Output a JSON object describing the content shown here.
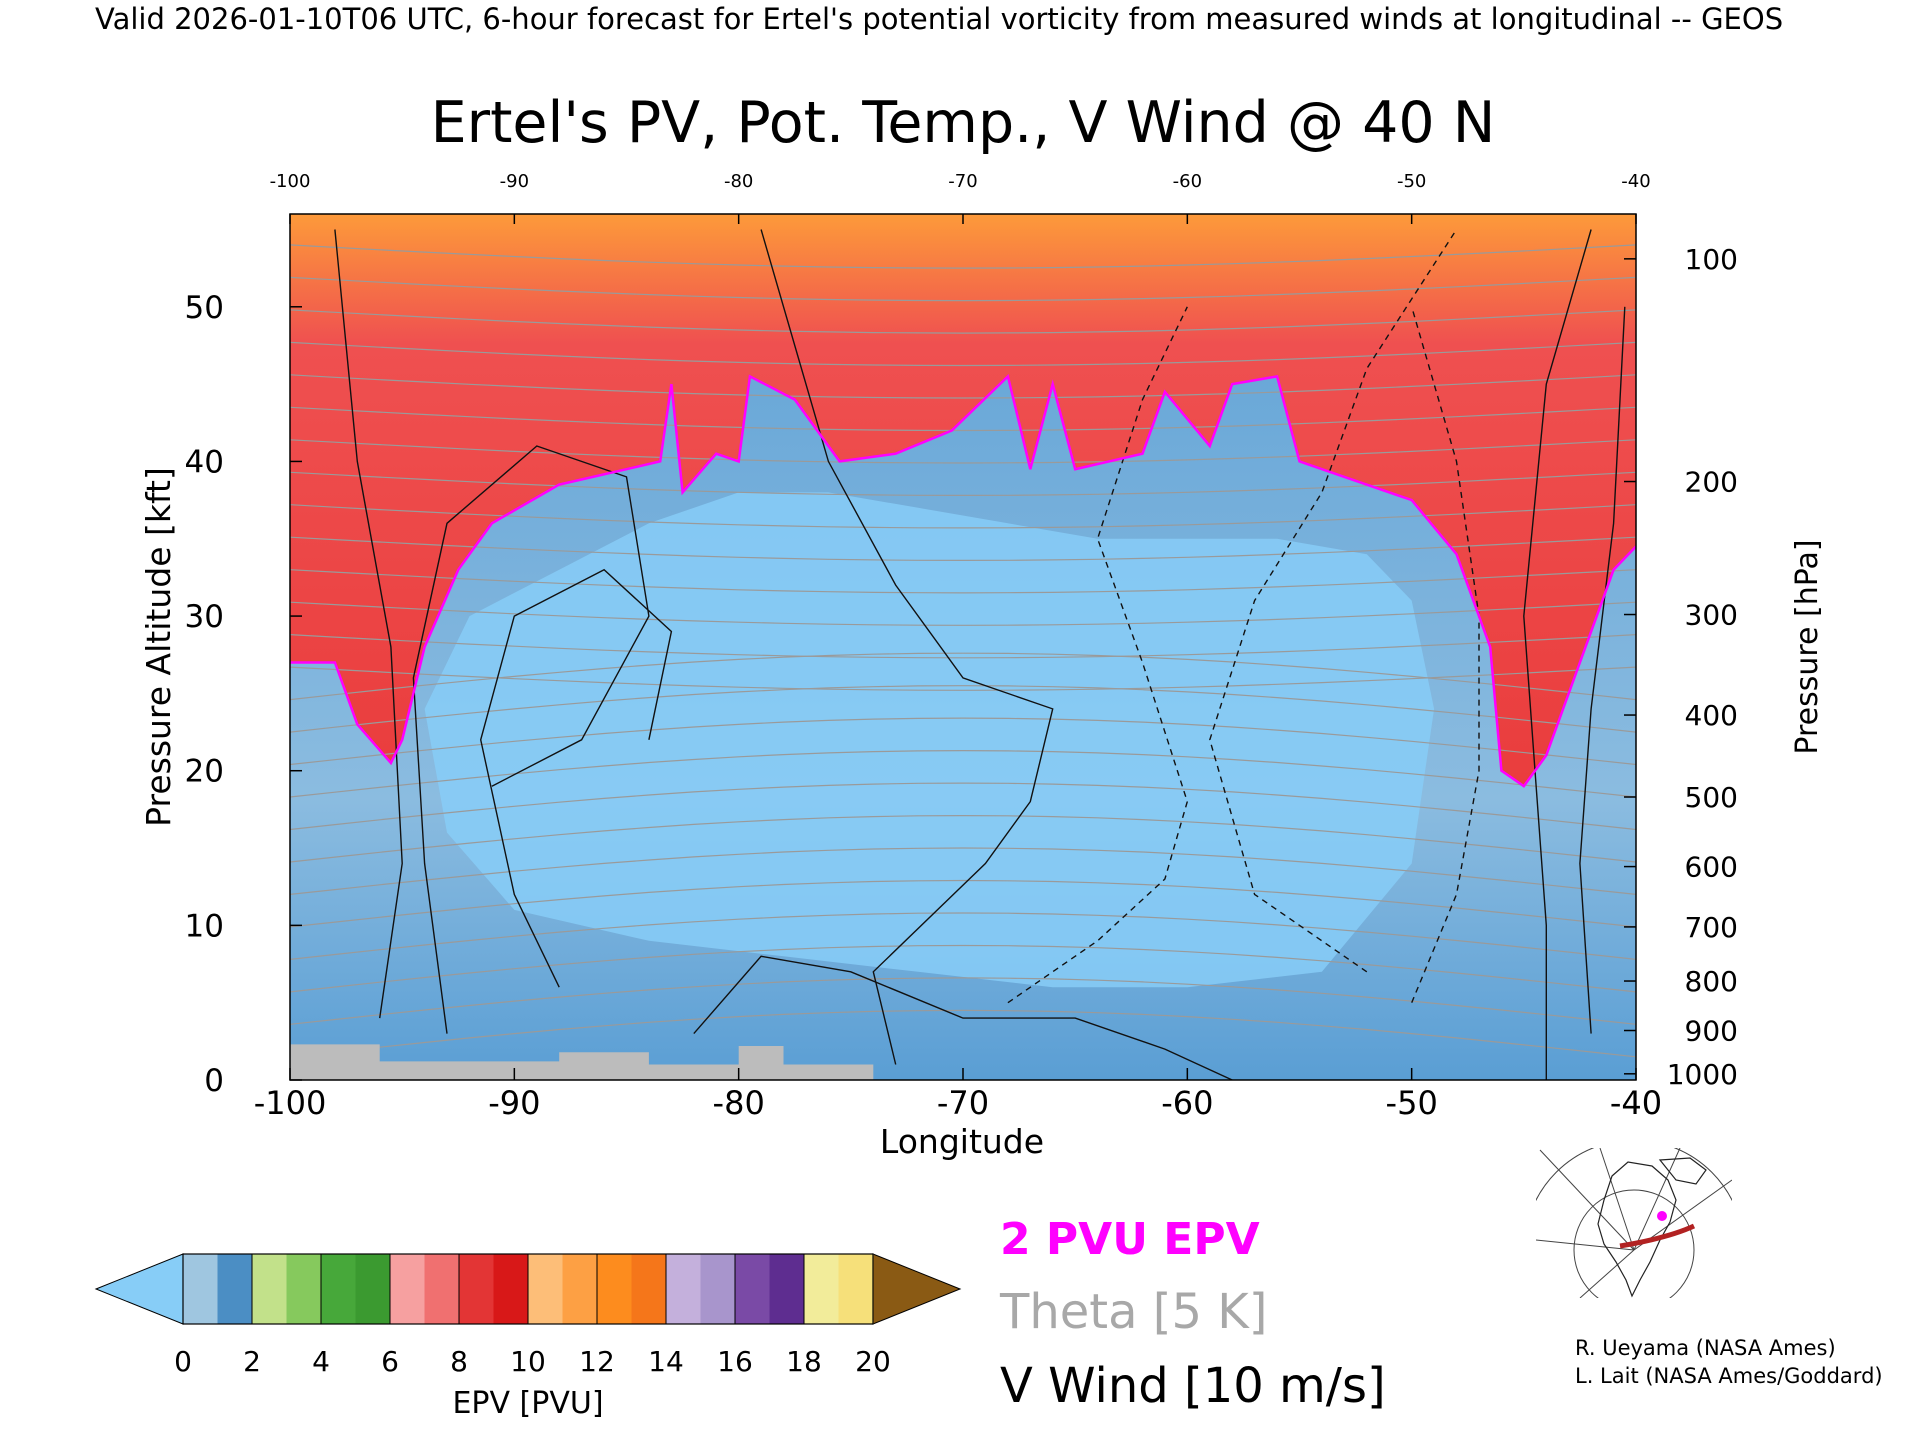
{
  "header": {
    "valid_line": "Valid 2026-01-10T06 UTC, 6-hour forecast for Ertel's potential vorticity from measured winds at longitudinal -- GEOS"
  },
  "chart_data": {
    "type": "heatmap",
    "title": "Ertel's PV, Pot. Temp., V Wind @ 40 N",
    "xlabel": "Longitude",
    "ylabel_left": "Pressure Altitude [kft]",
    "ylabel_right": "Pressure [hPa]",
    "xlim": [
      -100,
      -40
    ],
    "ylim": [
      0,
      56
    ],
    "x_ticks": [
      "-100",
      "-90",
      "-80",
      "-70",
      "-60",
      "-50",
      "-40"
    ],
    "x_tick_values": [
      -100,
      -90,
      -80,
      -70,
      -60,
      -50,
      -40
    ],
    "top_ticks": [
      "-100",
      "-90",
      "-80",
      "-70",
      "-60",
      "-50",
      "-40"
    ],
    "left_ticks": [
      "0",
      "10",
      "20",
      "30",
      "40",
      "50"
    ],
    "left_tick_values": [
      0,
      10,
      20,
      30,
      40,
      50
    ],
    "right_ticks": [
      "100",
      "200",
      "300",
      "400",
      "500",
      "600",
      "700",
      "800",
      "900",
      "1000"
    ],
    "right_tick_kft": [
      53.1,
      38.7,
      30.1,
      23.6,
      18.3,
      13.8,
      9.9,
      6.4,
      3.2,
      0.4
    ],
    "tropopause_kft": [
      [
        -100,
        27
      ],
      [
        -98,
        27
      ],
      [
        -97,
        23
      ],
      [
        -95.5,
        20.5
      ],
      [
        -95,
        22
      ],
      [
        -94,
        28
      ],
      [
        -92.5,
        33
      ],
      [
        -91,
        36
      ],
      [
        -88,
        38.5
      ],
      [
        -85,
        39.5
      ],
      [
        -83.5,
        40
      ],
      [
        -83,
        45
      ],
      [
        -82.5,
        38
      ],
      [
        -81,
        40.5
      ],
      [
        -80,
        40
      ],
      [
        -79.5,
        45.5
      ],
      [
        -77.5,
        44
      ],
      [
        -75.5,
        40
      ],
      [
        -73,
        40.5
      ],
      [
        -70.5,
        42
      ],
      [
        -68,
        45.5
      ],
      [
        -67,
        39.5
      ],
      [
        -66,
        45
      ],
      [
        -65,
        39.5
      ],
      [
        -62,
        40.5
      ],
      [
        -61,
        44.5
      ],
      [
        -59,
        41
      ],
      [
        -58,
        45
      ],
      [
        -56,
        45.5
      ],
      [
        -55,
        40
      ],
      [
        -53,
        39
      ],
      [
        -50,
        37.5
      ],
      [
        -48,
        34
      ],
      [
        -46.5,
        28
      ],
      [
        -46,
        20
      ],
      [
        -45,
        19
      ],
      [
        -44,
        21
      ],
      [
        -42.5,
        27
      ],
      [
        -41,
        33
      ],
      [
        -40,
        34.5
      ]
    ],
    "legend": {
      "epv_label": "2 PVU EPV",
      "theta_label": "Theta [5 K]",
      "wind_label": "V Wind [10 m/s]"
    },
    "colorbar": {
      "label": "EPV [PVU]",
      "tick_labels": [
        "0",
        "2",
        "4",
        "6",
        "8",
        "10",
        "12",
        "14",
        "16",
        "18",
        "20"
      ],
      "under_color": "#87cdf7",
      "over_color": "#8a5a14",
      "colors": [
        "#9fc6e0",
        "#4b8ec4",
        "#c2e18a",
        "#86c95d",
        "#47a83a",
        "#3b9a30",
        "#f6a0a0",
        "#f07070",
        "#e33535",
        "#d81818",
        "#fdbe78",
        "#fda044",
        "#fd8c1e",
        "#f5761a",
        "#c4b0dc",
        "#a895cc",
        "#7a4aa6",
        "#5e2d90",
        "#f2ec9a",
        "#f6e07a"
      ]
    }
  },
  "colors": {
    "epv_contour": "#ff00ff",
    "theta": "#a0a0a0",
    "terrain": "#bcbcbc",
    "stratosphere": "#e83a3a",
    "troposphere": "#7fb6e0",
    "core": "#87cdf7"
  },
  "inset_map": {
    "icon": "globe-projection-icon"
  },
  "credits": {
    "line1": "R. Ueyama (NASA Ames)",
    "line2": "L. Lait (NASA Ames/Goddard)"
  }
}
